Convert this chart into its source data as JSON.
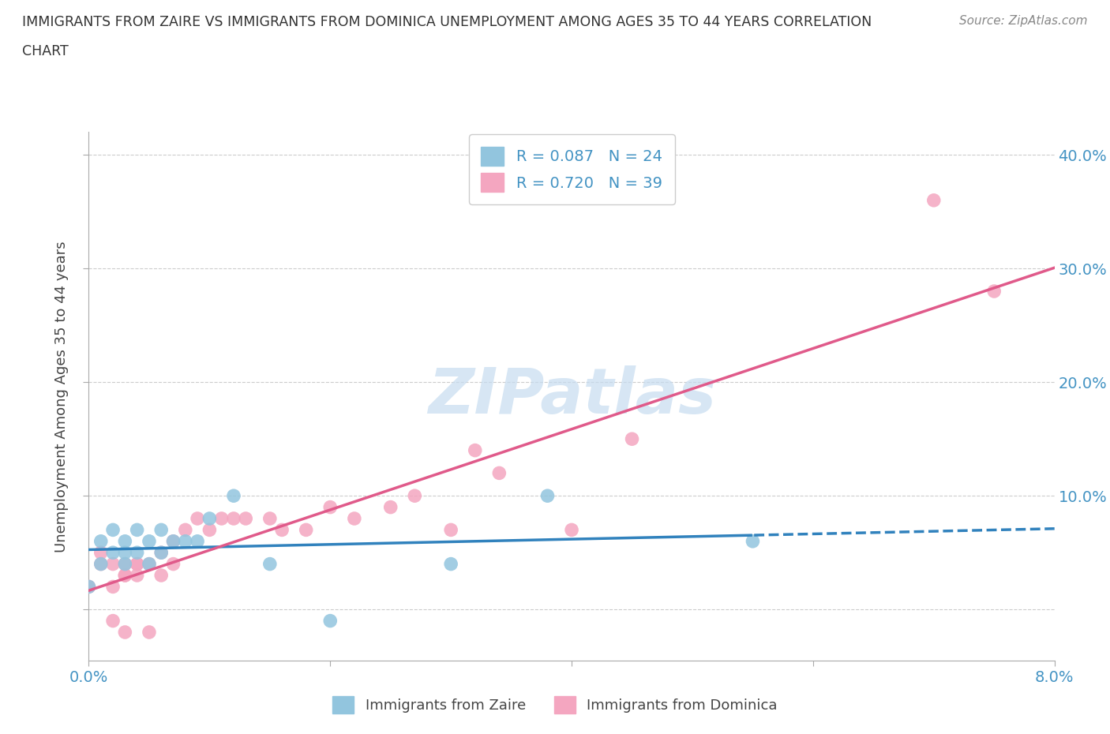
{
  "title_line1": "IMMIGRANTS FROM ZAIRE VS IMMIGRANTS FROM DOMINICA UNEMPLOYMENT AMONG AGES 35 TO 44 YEARS CORRELATION",
  "title_line2": "CHART",
  "source": "Source: ZipAtlas.com",
  "ylabel": "Unemployment Among Ages 35 to 44 years",
  "xlim": [
    0.0,
    0.08
  ],
  "ylim": [
    -0.045,
    0.42
  ],
  "x_ticks": [
    0.0,
    0.02,
    0.04,
    0.06,
    0.08
  ],
  "y_ticks": [
    0.0,
    0.1,
    0.2,
    0.3,
    0.4
  ],
  "zaire_R": 0.087,
  "zaire_N": 24,
  "dominica_R": 0.72,
  "dominica_N": 39,
  "zaire_color": "#92c5de",
  "dominica_color": "#f4a6c0",
  "zaire_line_color": "#3182bd",
  "dominica_line_color": "#e05a8a",
  "tick_color": "#4393c3",
  "watermark_color": "#c6dcf0",
  "background_color": "#ffffff",
  "zaire_x": [
    0.0,
    0.001,
    0.001,
    0.002,
    0.002,
    0.003,
    0.003,
    0.003,
    0.004,
    0.004,
    0.005,
    0.005,
    0.006,
    0.006,
    0.007,
    0.008,
    0.009,
    0.01,
    0.012,
    0.015,
    0.02,
    0.03,
    0.038,
    0.055
  ],
  "zaire_y": [
    0.02,
    0.04,
    0.06,
    0.05,
    0.07,
    0.04,
    0.05,
    0.06,
    0.05,
    0.07,
    0.04,
    0.06,
    0.05,
    0.07,
    0.06,
    0.06,
    0.06,
    0.08,
    0.1,
    0.04,
    -0.01,
    0.04,
    0.1,
    0.06
  ],
  "dominica_x": [
    0.0,
    0.001,
    0.001,
    0.002,
    0.002,
    0.002,
    0.003,
    0.003,
    0.003,
    0.003,
    0.004,
    0.004,
    0.004,
    0.005,
    0.005,
    0.006,
    0.006,
    0.007,
    0.007,
    0.008,
    0.009,
    0.01,
    0.011,
    0.012,
    0.013,
    0.015,
    0.016,
    0.018,
    0.02,
    0.022,
    0.025,
    0.027,
    0.03,
    0.032,
    0.034,
    0.04,
    0.045,
    0.07,
    0.075
  ],
  "dominica_y": [
    0.02,
    0.05,
    0.04,
    0.04,
    0.02,
    -0.01,
    0.03,
    0.03,
    0.04,
    -0.02,
    0.03,
    0.04,
    0.04,
    0.04,
    -0.02,
    0.03,
    0.05,
    0.04,
    0.06,
    0.07,
    0.08,
    0.07,
    0.08,
    0.08,
    0.08,
    0.08,
    0.07,
    0.07,
    0.09,
    0.08,
    0.09,
    0.1,
    0.07,
    0.14,
    0.12,
    0.07,
    0.15,
    0.36,
    0.28
  ]
}
